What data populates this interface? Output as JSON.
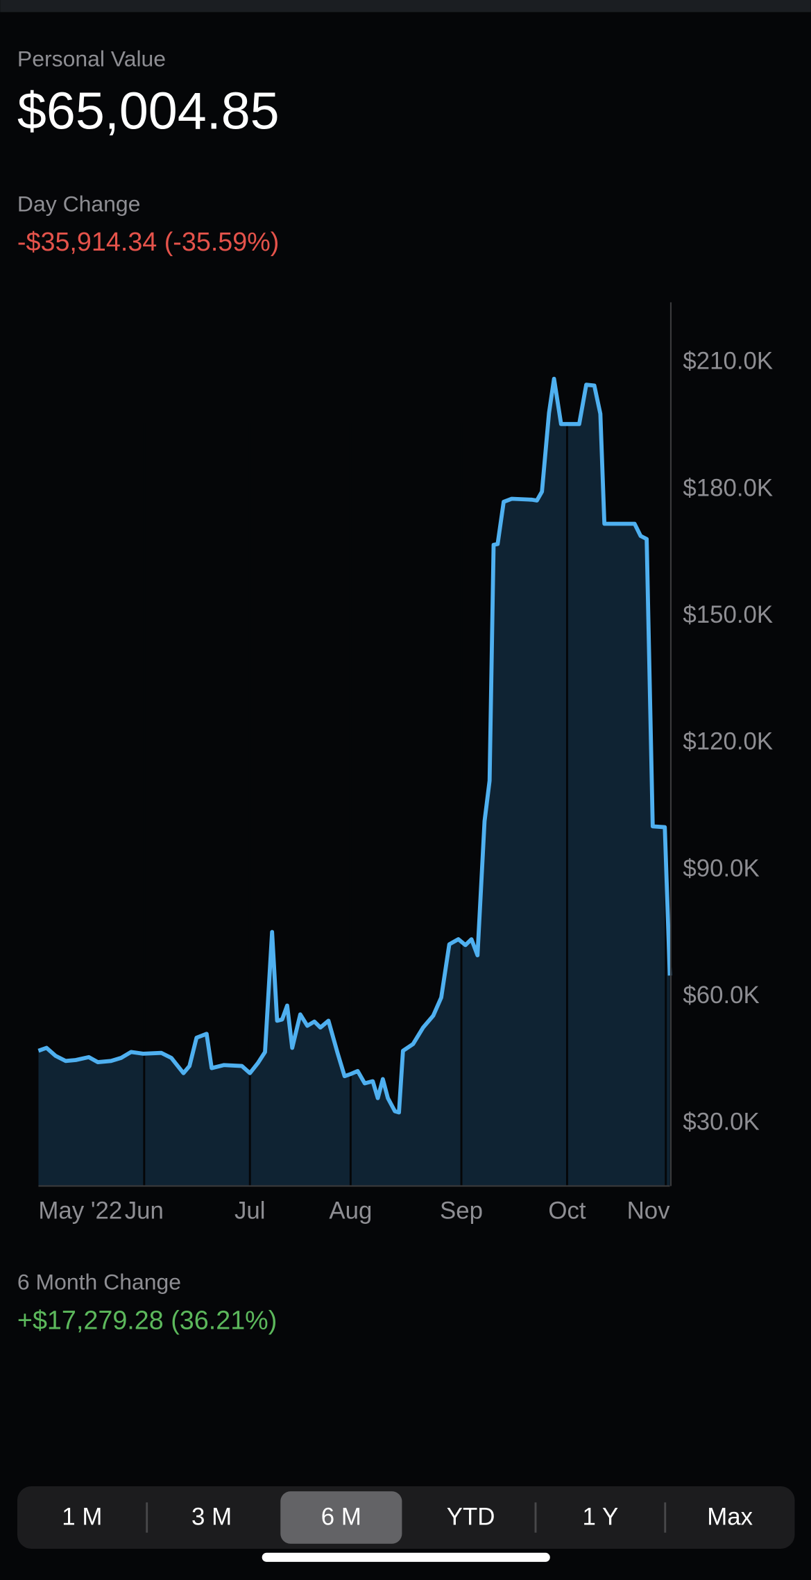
{
  "header": {
    "title": "Personal Value",
    "value": "$65,004.85"
  },
  "day_change": {
    "label": "Day Change",
    "value": "-$35,914.34 (-35.59%)"
  },
  "chart_data": {
    "type": "area",
    "color": "#4fb0f0",
    "fill": "#0f2333",
    "x": [
      0,
      1.6,
      3.4,
      5.4,
      7.4,
      10,
      11.8,
      14.4,
      16.4,
      18.4,
      20.8,
      24.4,
      26.4,
      28.8,
      30,
      31.4,
      33.4,
      34.4,
      36.8,
      40.4,
      42,
      43.6,
      45,
      46.4,
      47.4,
      48.4,
      49.4,
      50.4,
      52,
      53.4,
      54.8,
      56,
      57.6,
      59.4,
      60.8,
      62,
      63.4,
      64.8,
      66.4,
      67.4,
      68.4,
      69.4,
      70.8,
      71.6,
      72.4,
      74.4,
      76.4,
      78.4,
      80,
      81.6,
      83.4,
      84.8,
      86,
      87.2,
      88.6,
      89.6,
      90.4,
      91.2,
      92.4,
      94,
      98,
      99,
      100,
      101.4,
      102.4,
      103.8,
      107.4,
      108.8,
      110.4,
      111.6,
      112.4,
      118.4,
      119.6,
      120.8,
      122,
      124.4,
      125.4
    ],
    "values": [
      47200,
      47900,
      46000,
      44800,
      45000,
      45700,
      44500,
      44800,
      45500,
      46900,
      46500,
      46700,
      45500,
      41900,
      43600,
      50300,
      51200,
      43100,
      43800,
      43600,
      41900,
      44300,
      46900,
      75300,
      54300,
      54600,
      57900,
      47900,
      55800,
      53100,
      54100,
      52700,
      54300,
      46700,
      41200,
      41700,
      42400,
      39500,
      40000,
      36000,
      40500,
      36000,
      32900,
      32600,
      47200,
      48800,
      52700,
      55500,
      59800,
      72400,
      73600,
      72200,
      73600,
      69800,
      101500,
      111100,
      166900,
      167100,
      177100,
      177800,
      177600,
      177400,
      179500,
      198100,
      206200,
      195500,
      195500,
      204800,
      204600,
      197900,
      171900,
      171900,
      169000,
      168300,
      100300,
      100100,
      65000
    ],
    "xlim": [
      0,
      125.4
    ],
    "xticks": [
      {
        "value": 0,
        "label": "May '22"
      },
      {
        "value": 21,
        "label": "Jun"
      },
      {
        "value": 42,
        "label": "Jul"
      },
      {
        "value": 62,
        "label": "Aug"
      },
      {
        "value": 84,
        "label": "Sep"
      },
      {
        "value": 105,
        "label": "Oct"
      },
      {
        "value": 124.6,
        "label": "Nov"
      }
    ],
    "ylim": [
      15200,
      224300
    ],
    "yticks": [
      {
        "value": 30000,
        "label": "$30.0K"
      },
      {
        "value": 60000,
        "label": "$60.0K"
      },
      {
        "value": 90000,
        "label": "$90.0K"
      },
      {
        "value": 120000,
        "label": "$120.0K"
      },
      {
        "value": 150000,
        "label": "$150.0K"
      },
      {
        "value": 180000,
        "label": "$180.0K"
      },
      {
        "value": 210000,
        "label": "$210.0K"
      }
    ]
  },
  "period_change": {
    "label": "6 Month Change",
    "value": "+$17,279.28 (36.21%)"
  },
  "range_buttons": {
    "options": [
      "1 M",
      "3 M",
      "6 M",
      "YTD",
      "1 Y",
      "Max"
    ],
    "selected": 2
  }
}
